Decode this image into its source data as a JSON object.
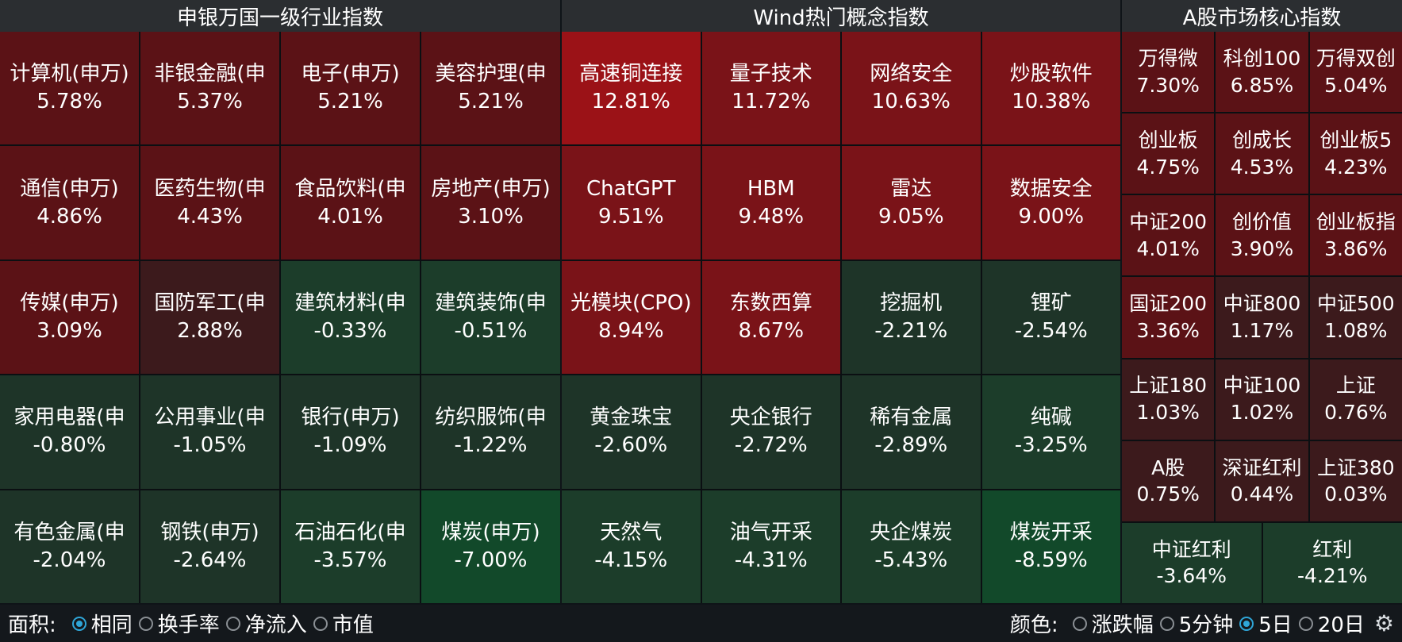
{
  "colors": {
    "up_strong": "#9b1217",
    "up_mid": "#7a1318",
    "up_dark": "#5b1216",
    "up_faint": "#3c1a1c",
    "down_faint": "#1e3428",
    "down_dark": "#1c3d2a",
    "down_mid": "#12492a",
    "down_strong": "#0f5a2e"
  },
  "panels": [
    {
      "title": "申银万国一级行业指数",
      "tiles": [
        {
          "name": "计算机(申万)",
          "pct": "5.78%",
          "shade": "up_dark"
        },
        {
          "name": "非银金融(申",
          "pct": "5.37%",
          "shade": "up_dark"
        },
        {
          "name": "电子(申万)",
          "pct": "5.21%",
          "shade": "up_dark"
        },
        {
          "name": "美容护理(申",
          "pct": "5.21%",
          "shade": "up_dark"
        },
        {
          "name": "通信(申万)",
          "pct": "4.86%",
          "shade": "up_dark"
        },
        {
          "name": "医药生物(申",
          "pct": "4.43%",
          "shade": "up_dark"
        },
        {
          "name": "食品饮料(申",
          "pct": "4.01%",
          "shade": "up_dark"
        },
        {
          "name": "房地产(申万)",
          "pct": "3.10%",
          "shade": "up_dark"
        },
        {
          "name": "传媒(申万)",
          "pct": "3.09%",
          "shade": "up_dark"
        },
        {
          "name": "国防军工(申",
          "pct": "2.88%",
          "shade": "up_faint"
        },
        {
          "name": "建筑材料(申",
          "pct": "-0.33%",
          "shade": "down_dark"
        },
        {
          "name": "建筑装饰(申",
          "pct": "-0.51%",
          "shade": "down_dark"
        },
        {
          "name": "家用电器(申",
          "pct": "-0.80%",
          "shade": "down_faint"
        },
        {
          "name": "公用事业(申",
          "pct": "-1.05%",
          "shade": "down_faint"
        },
        {
          "name": "银行(申万)",
          "pct": "-1.09%",
          "shade": "down_faint"
        },
        {
          "name": "纺织服饰(申",
          "pct": "-1.22%",
          "shade": "down_faint"
        },
        {
          "name": "有色金属(申",
          "pct": "-2.04%",
          "shade": "down_faint"
        },
        {
          "name": "钢铁(申万)",
          "pct": "-2.64%",
          "shade": "down_faint"
        },
        {
          "name": "石油石化(申",
          "pct": "-3.57%",
          "shade": "down_dark"
        },
        {
          "name": "煤炭(申万)",
          "pct": "-7.00%",
          "shade": "down_mid"
        }
      ]
    },
    {
      "title": "Wind热门概念指数",
      "tiles": [
        {
          "name": "高速铜连接",
          "pct": "12.81%",
          "shade": "up_strong"
        },
        {
          "name": "量子技术",
          "pct": "11.72%",
          "shade": "up_mid"
        },
        {
          "name": "网络安全",
          "pct": "10.63%",
          "shade": "up_mid"
        },
        {
          "name": "炒股软件",
          "pct": "10.38%",
          "shade": "up_mid"
        },
        {
          "name": "ChatGPT",
          "pct": "9.51%",
          "shade": "up_mid"
        },
        {
          "name": "HBM",
          "pct": "9.48%",
          "shade": "up_mid"
        },
        {
          "name": "雷达",
          "pct": "9.05%",
          "shade": "up_mid"
        },
        {
          "name": "数据安全",
          "pct": "9.00%",
          "shade": "up_mid"
        },
        {
          "name": "光模块(CPO)",
          "pct": "8.94%",
          "shade": "up_mid"
        },
        {
          "name": "东数西算",
          "pct": "8.67%",
          "shade": "up_mid"
        },
        {
          "name": "挖掘机",
          "pct": "-2.21%",
          "shade": "down_faint"
        },
        {
          "name": "锂矿",
          "pct": "-2.54%",
          "shade": "down_faint"
        },
        {
          "name": "黄金珠宝",
          "pct": "-2.60%",
          "shade": "down_faint"
        },
        {
          "name": "央企银行",
          "pct": "-2.72%",
          "shade": "down_faint"
        },
        {
          "name": "稀有金属",
          "pct": "-2.89%",
          "shade": "down_faint"
        },
        {
          "name": "纯碱",
          "pct": "-3.25%",
          "shade": "down_dark"
        },
        {
          "name": "天然气",
          "pct": "-4.15%",
          "shade": "down_dark"
        },
        {
          "name": "油气开采",
          "pct": "-4.31%",
          "shade": "down_dark"
        },
        {
          "name": "央企煤炭",
          "pct": "-5.43%",
          "shade": "down_dark"
        },
        {
          "name": "煤炭开采",
          "pct": "-8.59%",
          "shade": "down_mid"
        }
      ]
    },
    {
      "title": "A股市场核心指数",
      "tiles": [
        {
          "name": "万得微",
          "pct": "7.30%",
          "shade": "up_dark"
        },
        {
          "name": "科创100",
          "pct": "6.85%",
          "shade": "up_dark"
        },
        {
          "name": "万得双创",
          "pct": "5.04%",
          "shade": "up_dark"
        },
        {
          "name": "创业板",
          "pct": "4.75%",
          "shade": "up_dark"
        },
        {
          "name": "创成长",
          "pct": "4.53%",
          "shade": "up_dark"
        },
        {
          "name": "创业板5",
          "pct": "4.23%",
          "shade": "up_dark"
        },
        {
          "name": "中证200",
          "pct": "4.01%",
          "shade": "up_dark"
        },
        {
          "name": "创价值",
          "pct": "3.90%",
          "shade": "up_dark"
        },
        {
          "name": "创业板指",
          "pct": "3.86%",
          "shade": "up_dark"
        },
        {
          "name": "国证200",
          "pct": "3.36%",
          "shade": "up_dark"
        },
        {
          "name": "中证800",
          "pct": "1.17%",
          "shade": "up_faint"
        },
        {
          "name": "中证500",
          "pct": "1.08%",
          "shade": "up_faint"
        },
        {
          "name": "上证180",
          "pct": "1.03%",
          "shade": "up_faint"
        },
        {
          "name": "中证100",
          "pct": "1.02%",
          "shade": "up_faint"
        },
        {
          "name": "上证",
          "pct": "0.76%",
          "shade": "up_faint"
        },
        {
          "name": "A股",
          "pct": "0.75%",
          "shade": "up_faint"
        },
        {
          "name": "深证红利",
          "pct": "0.44%",
          "shade": "up_faint"
        },
        {
          "name": "上证380",
          "pct": "0.03%",
          "shade": "up_faint"
        },
        {
          "name": "中证红利",
          "pct": "-3.64%",
          "shade": "down_dark"
        },
        {
          "name": "红利",
          "pct": "-4.21%",
          "shade": "down_dark"
        }
      ]
    }
  ],
  "bottom_bar": {
    "area_label": "面积:",
    "area_options": [
      {
        "label": "相同",
        "checked": true
      },
      {
        "label": "换手率",
        "checked": false
      },
      {
        "label": "净流入",
        "checked": false
      },
      {
        "label": "市值",
        "checked": false
      }
    ],
    "color_label": "颜色:",
    "color_options": [
      {
        "label": "涨跌幅",
        "checked": false
      },
      {
        "label": "5分钟",
        "checked": false
      },
      {
        "label": "5日",
        "checked": true
      },
      {
        "label": "20日",
        "checked": false
      }
    ],
    "settings_icon": "gear-icon"
  }
}
